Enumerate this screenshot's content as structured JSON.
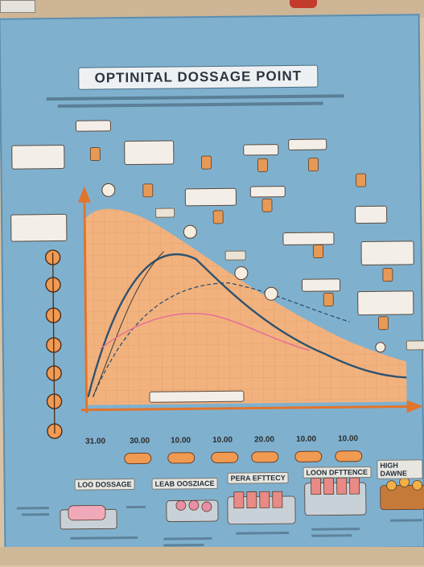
{
  "poster": {
    "title": "OPTINITAL DOSSAGE POINT"
  },
  "x_axis": {
    "ticks": [
      "31.00",
      "30.00",
      "10.00",
      "10.00",
      "20.00",
      "10.00",
      "10.00"
    ]
  },
  "categories": [
    {
      "label": "LOO DOSSAGE"
    },
    {
      "label": "LEAB OOSZIACE"
    },
    {
      "label": "PERA EFTTECY"
    },
    {
      "label": "LOON DFTTENCE"
    },
    {
      "label": "HIGH DAWNE"
    }
  ],
  "colors": {
    "poster": "#7fb1cf",
    "chart_fill": "#f2b27d",
    "curve_main": "#2f5270",
    "curve_pink": "#e56a9a",
    "axis": "#e2742c"
  },
  "icons": [
    "bottle-icon",
    "pill-tray-icon",
    "circle-marker-icon"
  ]
}
